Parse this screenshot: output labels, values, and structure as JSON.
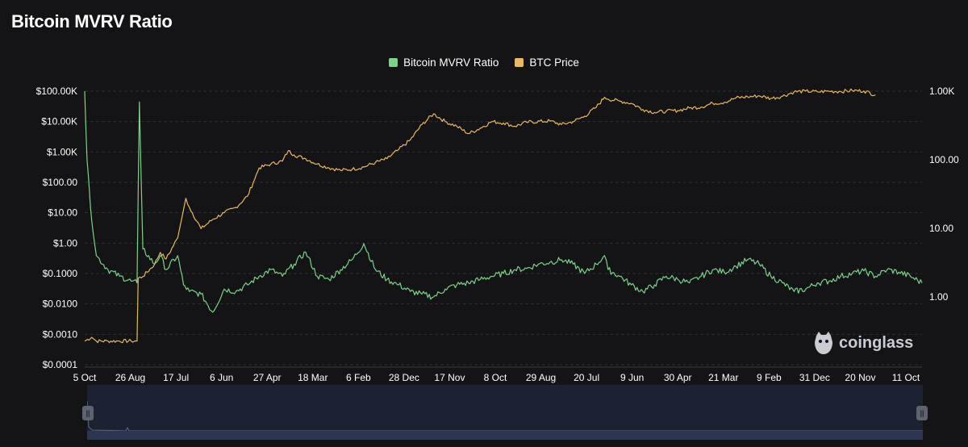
{
  "title": "Bitcoin MVRV Ratio",
  "legend": [
    {
      "label": "Bitcoin MVRV Ratio",
      "color": "#7ed18a"
    },
    {
      "label": "BTC Price",
      "color": "#e8b866"
    }
  ],
  "watermark": "coinglass",
  "chart_data": {
    "type": "line",
    "title": "Bitcoin MVRV Ratio",
    "left_axis": {
      "scale": "log",
      "ticks": [
        "$100.00K",
        "$10.00K",
        "$1.00K",
        "$100.00",
        "$10.00",
        "$1.00",
        "$0.1000",
        "$0.0100",
        "$0.0010",
        "$0.0001"
      ]
    },
    "right_axis": {
      "scale": "log",
      "ticks": [
        "1.00K",
        "100.00",
        "10.00",
        "1.00"
      ]
    },
    "x_ticks": [
      "5 Oct",
      "26 Aug",
      "17 Jul",
      "6 Jun",
      "27 Apr",
      "18 Mar",
      "6 Feb",
      "28 Dec",
      "17 Nov",
      "8 Oct",
      "29 Aug",
      "20 Jul",
      "9 Jun",
      "30 Apr",
      "21 Mar",
      "9 Feb",
      "31 Dec",
      "20 Nov",
      "11 Oct"
    ],
    "series": [
      {
        "name": "BTC Price",
        "axis": "left",
        "color": "#e8b866",
        "points": [
          [
            0,
            0.0006
          ],
          [
            0.6,
            0.0008
          ],
          [
            1,
            0.0006
          ],
          [
            2,
            0.0006
          ],
          [
            3,
            0.0006
          ],
          [
            4,
            0.0006
          ],
          [
            4.5,
            0.0006
          ],
          [
            4.6,
            0.07
          ],
          [
            5,
            0.08
          ],
          [
            6,
            0.2
          ],
          [
            6.5,
            0.5
          ],
          [
            7,
            0.3
          ],
          [
            8,
            1.5
          ],
          [
            8.7,
            30
          ],
          [
            9,
            15
          ],
          [
            10,
            3
          ],
          [
            11,
            6
          ],
          [
            12,
            10
          ],
          [
            13,
            15
          ],
          [
            14,
            35
          ],
          [
            14.5,
            100
          ],
          [
            15,
            300
          ],
          [
            16,
            400
          ],
          [
            17,
            500
          ],
          [
            17.5,
            1100
          ],
          [
            18,
            800
          ],
          [
            19,
            600
          ],
          [
            20,
            400
          ],
          [
            21,
            300
          ],
          [
            22,
            250
          ],
          [
            23,
            270
          ],
          [
            24,
            320
          ],
          [
            25,
            450
          ],
          [
            26,
            600
          ],
          [
            27,
            1200
          ],
          [
            28,
            2500
          ],
          [
            29,
            8000
          ],
          [
            30,
            18000
          ],
          [
            31,
            10000
          ],
          [
            32,
            7000
          ],
          [
            33,
            4000
          ],
          [
            34,
            6000
          ],
          [
            35,
            10000
          ],
          [
            36,
            9000
          ],
          [
            37,
            7000
          ],
          [
            38,
            9500
          ],
          [
            40,
            10500
          ],
          [
            41,
            8000
          ],
          [
            42,
            10000
          ],
          [
            43,
            15000
          ],
          [
            44,
            30000
          ],
          [
            44.7,
            63000
          ],
          [
            45,
            55000
          ],
          [
            46,
            47000
          ],
          [
            47,
            40000
          ],
          [
            48,
            25000
          ],
          [
            49,
            20000
          ],
          [
            50,
            22000
          ],
          [
            51,
            23000
          ],
          [
            52,
            28000
          ],
          [
            53,
            30000
          ],
          [
            54,
            40000
          ],
          [
            55,
            43000
          ],
          [
            56,
            60000
          ],
          [
            57,
            65000
          ],
          [
            58,
            70000
          ],
          [
            59,
            58000
          ],
          [
            60,
            68000
          ],
          [
            61,
            95000
          ],
          [
            62,
            100000
          ],
          [
            63,
            95000
          ],
          [
            64,
            100000
          ],
          [
            65,
            98000
          ],
          [
            66,
            105000
          ],
          [
            67,
            102000
          ],
          [
            68,
            76000
          ]
        ]
      },
      {
        "name": "Bitcoin MVRV Ratio",
        "axis": "right",
        "color": "#7ed18a",
        "points": [
          [
            0,
            1000
          ],
          [
            0.2,
            100
          ],
          [
            0.5,
            20
          ],
          [
            1,
            4
          ],
          [
            2,
            2.5
          ],
          [
            3,
            2
          ],
          [
            4,
            1.7
          ],
          [
            4.5,
            1.6
          ],
          [
            4.7,
            700
          ],
          [
            5,
            5
          ],
          [
            6,
            3
          ],
          [
            6.5,
            4
          ],
          [
            7,
            2.5
          ],
          [
            8,
            4
          ],
          [
            8.5,
            1.5
          ],
          [
            9,
            1.2
          ],
          [
            10,
            1.1
          ],
          [
            11,
            0.6
          ],
          [
            12,
            1.3
          ],
          [
            13,
            1.2
          ],
          [
            14,
            1.5
          ],
          [
            15,
            2
          ],
          [
            16,
            2.5
          ],
          [
            17,
            2
          ],
          [
            18,
            3
          ],
          [
            19,
            4.5
          ],
          [
            20,
            2
          ],
          [
            21,
            1.8
          ],
          [
            22,
            2.5
          ],
          [
            23,
            3.5
          ],
          [
            24,
            6
          ],
          [
            25,
            2.5
          ],
          [
            26,
            1.8
          ],
          [
            27,
            1.5
          ],
          [
            28,
            1.2
          ],
          [
            29,
            1.1
          ],
          [
            30,
            1
          ],
          [
            31,
            1.3
          ],
          [
            32,
            1.5
          ],
          [
            33,
            1.6
          ],
          [
            34,
            1.8
          ],
          [
            35,
            2
          ],
          [
            36,
            2.2
          ],
          [
            37,
            2.5
          ],
          [
            38,
            2.6
          ],
          [
            39,
            3
          ],
          [
            40,
            3.2
          ],
          [
            41,
            3.5
          ],
          [
            42,
            3
          ],
          [
            43,
            2.2
          ],
          [
            44,
            3
          ],
          [
            44.7,
            4
          ],
          [
            45,
            2.5
          ],
          [
            46,
            2
          ],
          [
            47,
            1.5
          ],
          [
            48,
            1.2
          ],
          [
            49,
            1.5
          ],
          [
            50,
            2
          ],
          [
            51,
            1.8
          ],
          [
            52,
            1.6
          ],
          [
            53,
            2
          ],
          [
            54,
            2.5
          ],
          [
            55,
            2.3
          ],
          [
            56,
            2.8
          ],
          [
            57,
            3.5
          ],
          [
            58,
            3
          ],
          [
            59,
            2
          ],
          [
            60,
            1.6
          ],
          [
            61,
            1.2
          ],
          [
            62,
            1.3
          ],
          [
            63,
            1.6
          ],
          [
            64,
            1.7
          ],
          [
            65,
            2
          ],
          [
            66,
            2.2
          ],
          [
            67,
            2.4
          ],
          [
            68,
            2
          ],
          [
            69,
            2.5
          ],
          [
            70,
            2.3
          ],
          [
            71,
            2
          ],
          [
            72,
            1.6
          ]
        ]
      }
    ]
  }
}
